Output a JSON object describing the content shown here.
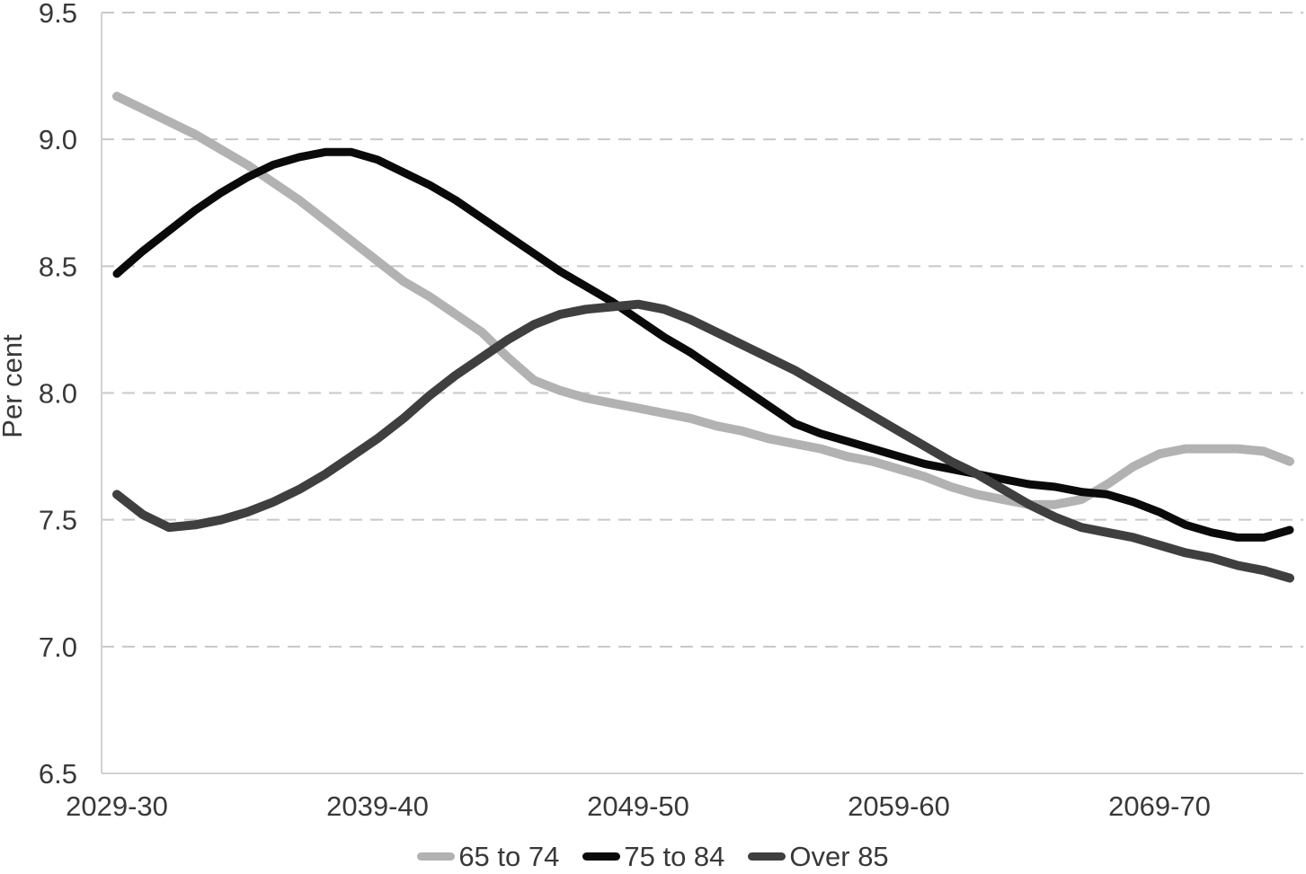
{
  "chart_data": {
    "type": "line",
    "title": "",
    "ylabel": "Per cent",
    "ylim": [
      6.5,
      9.5
    ],
    "y_ticks": [
      6.5,
      7.0,
      7.5,
      8.0,
      8.5,
      9.0,
      9.5
    ],
    "y_tick_labels": [
      "6.5",
      "7.0",
      "7.5",
      "8.0",
      "8.5",
      "9.0",
      "9.5"
    ],
    "x_tick_labels": [
      "2029-30",
      "2039-40",
      "2049-50",
      "2059-60",
      "2069-70"
    ],
    "x_tick_indices": [
      0,
      10,
      20,
      30,
      40
    ],
    "x_point_count": 46,
    "grid": "horizontal dashed gridlines, no vertical grid",
    "legend_position": "bottom center",
    "series": [
      {
        "name": "65 to 74",
        "color": "#b2b2b2",
        "stroke_width": 10,
        "values": [
          9.17,
          9.12,
          9.07,
          9.02,
          8.96,
          8.9,
          8.83,
          8.76,
          8.68,
          8.6,
          8.52,
          8.44,
          8.38,
          8.31,
          8.24,
          8.14,
          8.05,
          8.01,
          7.98,
          7.96,
          7.94,
          7.92,
          7.9,
          7.87,
          7.85,
          7.82,
          7.8,
          7.78,
          7.75,
          7.73,
          7.7,
          7.67,
          7.63,
          7.6,
          7.58,
          7.56,
          7.56,
          7.58,
          7.64,
          7.71,
          7.76,
          7.78,
          7.78,
          7.78,
          7.77,
          7.73
        ]
      },
      {
        "name": "75 to 84",
        "color": "#0a0a0a",
        "stroke_width": 9,
        "values": [
          8.47,
          8.56,
          8.64,
          8.72,
          8.79,
          8.85,
          8.9,
          8.93,
          8.95,
          8.95,
          8.92,
          8.87,
          8.82,
          8.76,
          8.69,
          8.62,
          8.55,
          8.48,
          8.42,
          8.36,
          8.29,
          8.22,
          8.16,
          8.09,
          8.02,
          7.95,
          7.88,
          7.84,
          7.81,
          7.78,
          7.75,
          7.72,
          7.7,
          7.68,
          7.66,
          7.64,
          7.63,
          7.61,
          7.6,
          7.57,
          7.53,
          7.48,
          7.45,
          7.43,
          7.43,
          7.46
        ]
      },
      {
        "name": "Over 85",
        "color": "#3f3f3f",
        "stroke_width": 10,
        "values": [
          7.6,
          7.52,
          7.47,
          7.48,
          7.5,
          7.53,
          7.57,
          7.62,
          7.68,
          7.75,
          7.82,
          7.9,
          7.99,
          8.07,
          8.14,
          8.21,
          8.27,
          8.31,
          8.33,
          8.34,
          8.35,
          8.33,
          8.29,
          8.24,
          8.19,
          8.14,
          8.09,
          8.03,
          7.97,
          7.91,
          7.85,
          7.79,
          7.73,
          7.68,
          7.62,
          7.56,
          7.51,
          7.47,
          7.45,
          7.43,
          7.4,
          7.37,
          7.35,
          7.32,
          7.3,
          7.27
        ]
      }
    ]
  },
  "style_colors": {
    "grid_line": "#c8c8c8",
    "axis_line": "#d2d2d2",
    "tick_text": "#383838"
  }
}
